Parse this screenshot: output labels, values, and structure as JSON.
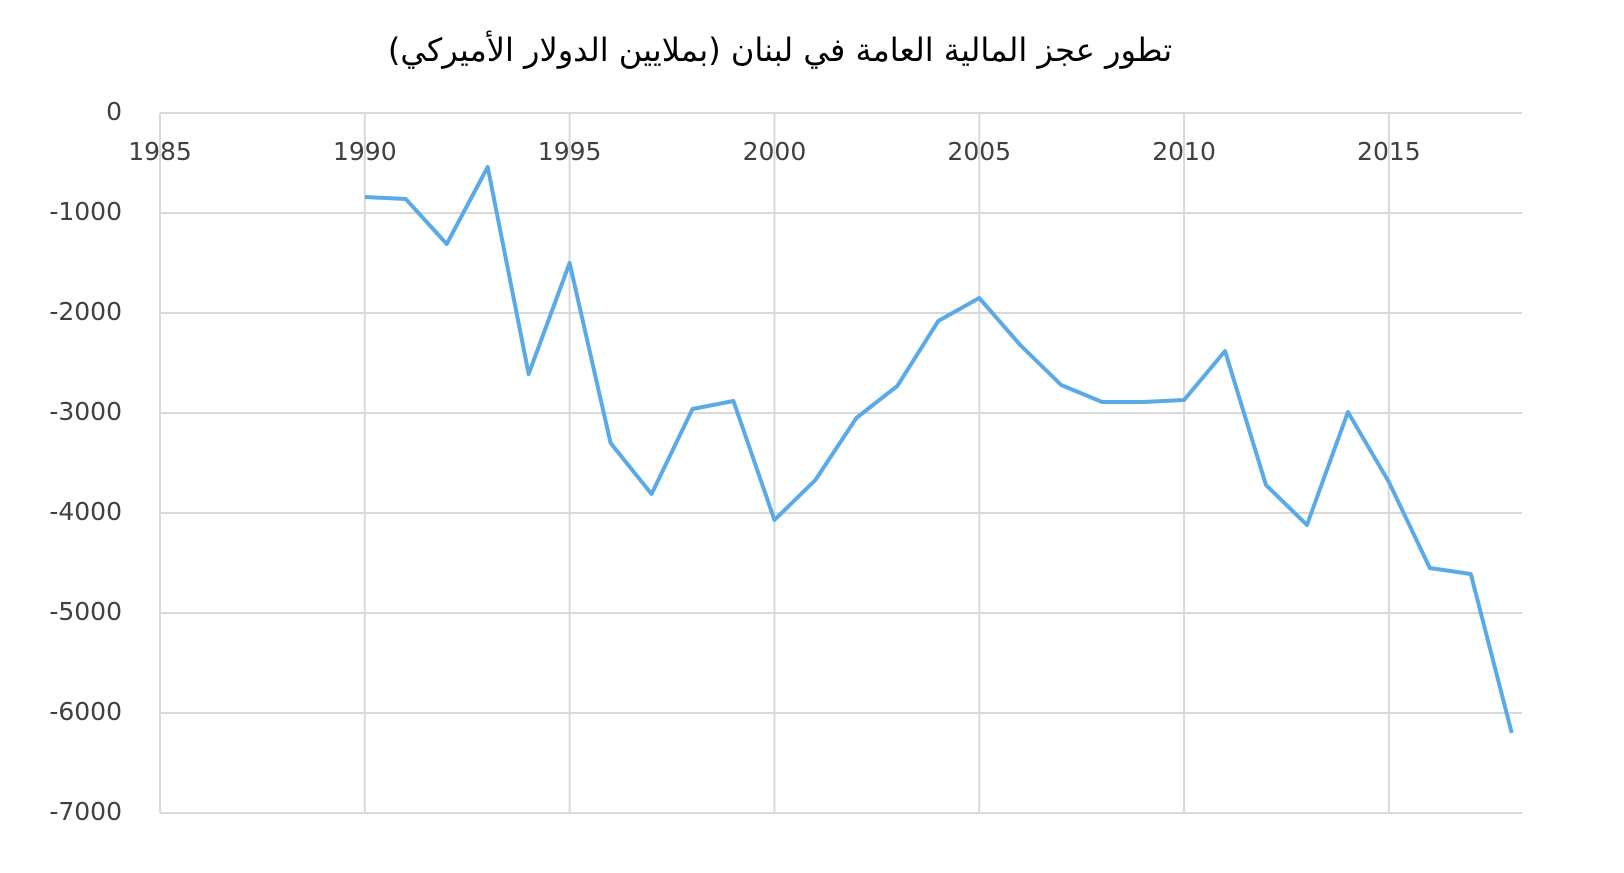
{
  "chart_data": {
    "type": "line",
    "title": "تطور عجز المالية العامة في لبنان (بملايين الدولار الأميركي)",
    "x": [
      1990,
      1991,
      1992,
      1993,
      1994,
      1995,
      1996,
      1997,
      1998,
      1999,
      2000,
      2001,
      2002,
      2003,
      2004,
      2005,
      2006,
      2007,
      2008,
      2009,
      2010,
      2011,
      2012,
      2013,
      2014,
      2015,
      2016,
      2017,
      2018
    ],
    "series": [
      {
        "color": "#5baae8",
        "values": [
          -840,
          -860,
          -1310,
          -540,
          -2610,
          -1500,
          -3300,
          -3810,
          -2960,
          -2880,
          -4070,
          -3670,
          -3050,
          -2730,
          -2080,
          -1850,
          -2320,
          -2720,
          -2890,
          -2890,
          -2870,
          -2380,
          -3720,
          -4120,
          -2990,
          -3690,
          -4550,
          -4610,
          -6200
        ]
      }
    ],
    "xlim": [
      1985,
      2018.25
    ],
    "xticks": [
      1985,
      1990,
      1995,
      2000,
      2005,
      2010,
      2015
    ],
    "ylim": [
      -7000,
      0
    ],
    "yticks": [
      0,
      -1000,
      -2000,
      -3000,
      -4000,
      -5000,
      -6000,
      -7000
    ],
    "grid": true
  }
}
